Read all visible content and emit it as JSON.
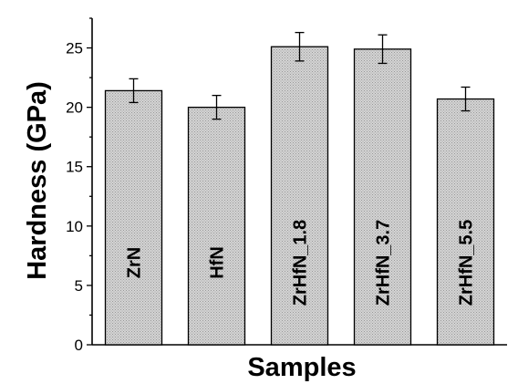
{
  "chart_data": {
    "type": "bar",
    "xlabel": "Samples",
    "ylabel": "Hardness (GPa)",
    "ylim": [
      0,
      27.5
    ],
    "yticks": [
      0,
      5,
      10,
      15,
      20,
      25
    ],
    "categories": [
      "ZrN",
      "HfN",
      "ZrHfN_1.8",
      "ZrHfN_3.7",
      "ZrHfN_5.5"
    ],
    "values": [
      21.4,
      20.0,
      25.1,
      24.9,
      20.7
    ],
    "errors": [
      1.0,
      1.0,
      1.2,
      1.2,
      1.0
    ],
    "bar_labels_inside_rotated": true,
    "grid": false,
    "legend": "none",
    "bar_fill_color": "#c8c8c8",
    "bar_edge_color": "#000000"
  }
}
